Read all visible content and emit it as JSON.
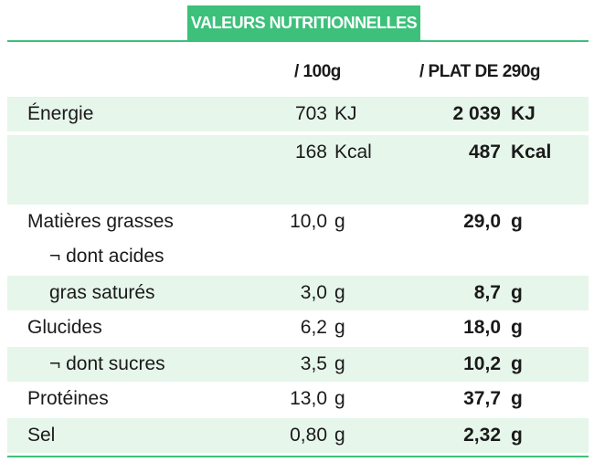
{
  "title": "VALEURS NUTRITIONNELLES",
  "columns": {
    "per_100g": "/ 100g",
    "per_plat": "/ PLAT DE 290g"
  },
  "rows": [
    {
      "label": "Énergie",
      "v100": "703",
      "u100": "KJ",
      "vplat": "2 039",
      "uplat": "KJ"
    },
    {
      "label": "",
      "v100": "168",
      "u100": "Kcal",
      "vplat": "487",
      "uplat": "Kcal"
    },
    {
      "label": "",
      "v100": "",
      "u100": "",
      "vplat": "",
      "uplat": ""
    },
    {
      "label": "Matières grasses",
      "v100": "10,0",
      "u100": "g",
      "vplat": "29,0",
      "uplat": "g"
    },
    {
      "label": "¬ dont acides",
      "v100": "",
      "u100": "",
      "vplat": "",
      "uplat": ""
    },
    {
      "label": "gras saturés",
      "v100": "3,0",
      "u100": "g",
      "vplat": "8,7",
      "uplat": "g"
    },
    {
      "label": "Glucides",
      "v100": "6,2",
      "u100": "g",
      "vplat": "18,0",
      "uplat": "g"
    },
    {
      "label": "¬ dont sucres",
      "v100": "3,5",
      "u100": "g",
      "vplat": "10,2",
      "uplat": "g"
    },
    {
      "label": "Protéines",
      "v100": "13,0",
      "u100": "g",
      "vplat": "37,7",
      "uplat": "g"
    },
    {
      "label": "Sel",
      "v100": "0,80",
      "u100": "g",
      "vplat": "2,32",
      "uplat": "g"
    }
  ],
  "colors": {
    "accent": "#3cc07a",
    "shade": "#e6f6ea"
  }
}
